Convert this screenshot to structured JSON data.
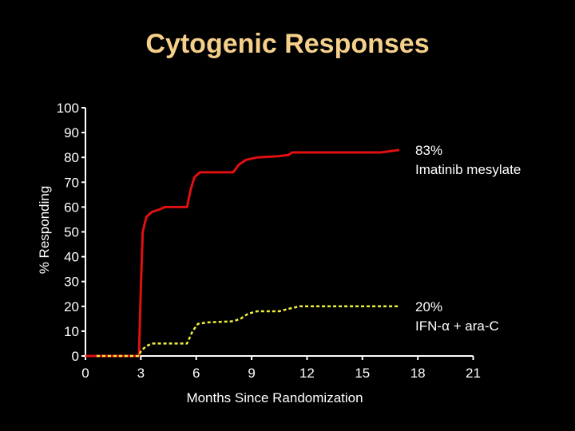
{
  "chart_data": {
    "type": "line",
    "title": "Cytogenic Responses",
    "xlabel": "Months Since Randomization",
    "ylabel": "% Responding",
    "xlim": [
      0,
      21
    ],
    "ylim": [
      0,
      100
    ],
    "xticks": [
      0,
      3,
      6,
      9,
      12,
      15,
      18,
      21
    ],
    "yticks": [
      0,
      10,
      20,
      30,
      40,
      50,
      60,
      70,
      80,
      90,
      100
    ],
    "colors": {
      "background": "#000000",
      "title": "#f5d08a",
      "axis": "#ffffff"
    },
    "series": [
      {
        "name": "Imatinib mesylate",
        "final_label": "83%",
        "color": "#e01010",
        "style": "solid",
        "points": [
          [
            0,
            0
          ],
          [
            2.9,
            0
          ],
          [
            3.0,
            28
          ],
          [
            3.1,
            50
          ],
          [
            3.3,
            56
          ],
          [
            3.6,
            58
          ],
          [
            4.0,
            59
          ],
          [
            4.3,
            60
          ],
          [
            5.5,
            60
          ],
          [
            5.7,
            67
          ],
          [
            5.9,
            72
          ],
          [
            6.2,
            74
          ],
          [
            8.0,
            74
          ],
          [
            8.3,
            77
          ],
          [
            8.7,
            79
          ],
          [
            9.3,
            80
          ],
          [
            10.5,
            80.5
          ],
          [
            11.0,
            81
          ],
          [
            11.2,
            82
          ],
          [
            14.0,
            82
          ],
          [
            15.0,
            82
          ],
          [
            16.0,
            82
          ],
          [
            17.0,
            83
          ]
        ]
      },
      {
        "name": "IFN-α + ara-C",
        "final_label": "20%",
        "color": "#f0f040",
        "style": "dashed",
        "points": [
          [
            0.6,
            0
          ],
          [
            2.9,
            0
          ],
          [
            3.0,
            2
          ],
          [
            3.3,
            4
          ],
          [
            3.6,
            5
          ],
          [
            5.5,
            5
          ],
          [
            5.8,
            10
          ],
          [
            6.1,
            13
          ],
          [
            6.6,
            13.5
          ],
          [
            8.0,
            14
          ],
          [
            8.4,
            15
          ],
          [
            8.8,
            17
          ],
          [
            9.3,
            18
          ],
          [
            10.5,
            18
          ],
          [
            11.0,
            19
          ],
          [
            11.6,
            20
          ],
          [
            17.0,
            20
          ]
        ]
      }
    ]
  }
}
